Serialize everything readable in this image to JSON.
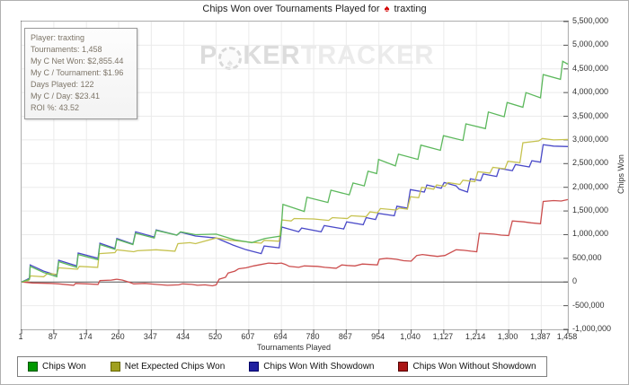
{
  "title": {
    "text": "Chips Won over Tournaments Played for",
    "suit_icon": "♠",
    "suit_color": "#d40000",
    "player": "traxting"
  },
  "watermark": {
    "p": "P",
    "chip_glyph": "♠",
    "ker": "KER",
    "tracker": "TRACKER"
  },
  "info_box": {
    "lines": [
      "Player: traxting",
      "Tournaments: 1,458",
      "My C Net Won: $2,855.44",
      "My C / Tournament: $1.96",
      "Days Played: 122",
      "My C / Day: $23.41",
      "ROI %: 43.52"
    ]
  },
  "colors": {
    "grid": "#ebebeb",
    "axis": "#555555",
    "zero_line": "#555555"
  },
  "chart_data": {
    "type": "line",
    "title": "Chips Won over Tournaments Played for traxting",
    "xlabel": "Tournaments Played",
    "ylabel": "Chips Won",
    "xlim": [
      1,
      1458
    ],
    "ylim": [
      -1000000,
      5500000
    ],
    "grid": true,
    "legend_position": "bottom-left",
    "x_ticks": [
      {
        "v": 1,
        "label": "1"
      },
      {
        "v": 87,
        "label": "87"
      },
      {
        "v": 174,
        "label": "174"
      },
      {
        "v": 260,
        "label": "260"
      },
      {
        "v": 347,
        "label": "347"
      },
      {
        "v": 434,
        "label": "434"
      },
      {
        "v": 520,
        "label": "520"
      },
      {
        "v": 607,
        "label": "607"
      },
      {
        "v": 694,
        "label": "694"
      },
      {
        "v": 780,
        "label": "780"
      },
      {
        "v": 867,
        "label": "867"
      },
      {
        "v": 954,
        "label": "954"
      },
      {
        "v": 1040,
        "label": "1,040"
      },
      {
        "v": 1127,
        "label": "1,127"
      },
      {
        "v": 1214,
        "label": "1,214"
      },
      {
        "v": 1300,
        "label": "1,300"
      },
      {
        "v": 1387,
        "label": "1,387"
      },
      {
        "v": 1458,
        "label": "1,458"
      }
    ],
    "y_ticks": [
      {
        "v": -1000000,
        "label": "-1,000,000"
      },
      {
        "v": -500000,
        "label": "-500,000"
      },
      {
        "v": 0,
        "label": "0"
      },
      {
        "v": 500000,
        "label": "500,000"
      },
      {
        "v": 1000000,
        "label": "1,000,000"
      },
      {
        "v": 1500000,
        "label": "1,500,000"
      },
      {
        "v": 2000000,
        "label": "2,000,000"
      },
      {
        "v": 2500000,
        "label": "2,500,000"
      },
      {
        "v": 3000000,
        "label": "3,000,000"
      },
      {
        "v": 3500000,
        "label": "3,500,000"
      },
      {
        "v": 4000000,
        "label": "4,000,000"
      },
      {
        "v": 4500000,
        "label": "4,500,000"
      },
      {
        "v": 5000000,
        "label": "5,000,000"
      },
      {
        "v": 5500000,
        "label": "5,500,000"
      }
    ],
    "series": [
      {
        "name": "Chips Won",
        "color": "#5cb85c",
        "legend_color": "#009900",
        "legend_border": "#005500",
        "points": [
          [
            1,
            0
          ],
          [
            15,
            40000
          ],
          [
            22,
            60000
          ],
          [
            24,
            330000
          ],
          [
            60,
            200000
          ],
          [
            95,
            110000
          ],
          [
            100,
            430000
          ],
          [
            148,
            310000
          ],
          [
            152,
            580000
          ],
          [
            205,
            470000
          ],
          [
            210,
            790000
          ],
          [
            250,
            690000
          ],
          [
            255,
            900000
          ],
          [
            298,
            790000
          ],
          [
            305,
            1030000
          ],
          [
            355,
            930000
          ],
          [
            360,
            1090000
          ],
          [
            415,
            990000
          ],
          [
            425,
            1060000
          ],
          [
            465,
            1000000
          ],
          [
            520,
            1010000
          ],
          [
            570,
            890000
          ],
          [
            615,
            830000
          ],
          [
            650,
            920000
          ],
          [
            692,
            970000
          ],
          [
            698,
            1640000
          ],
          [
            755,
            1490000
          ],
          [
            762,
            1790000
          ],
          [
            818,
            1680000
          ],
          [
            826,
            1940000
          ],
          [
            875,
            1840000
          ],
          [
            885,
            2090000
          ],
          [
            915,
            2030000
          ],
          [
            925,
            2340000
          ],
          [
            948,
            2290000
          ],
          [
            953,
            2590000
          ],
          [
            998,
            2450000
          ],
          [
            1006,
            2700000
          ],
          [
            1058,
            2590000
          ],
          [
            1066,
            2890000
          ],
          [
            1118,
            2780000
          ],
          [
            1126,
            3090000
          ],
          [
            1178,
            2990000
          ],
          [
            1186,
            3340000
          ],
          [
            1238,
            3240000
          ],
          [
            1246,
            3590000
          ],
          [
            1288,
            3490000
          ],
          [
            1296,
            3790000
          ],
          [
            1338,
            3690000
          ],
          [
            1346,
            4000000
          ],
          [
            1385,
            3890000
          ],
          [
            1392,
            4380000
          ],
          [
            1438,
            4280000
          ],
          [
            1444,
            4660000
          ],
          [
            1458,
            4600000
          ]
        ]
      },
      {
        "name": "Net Expected Chips Won",
        "color": "#c6c24f",
        "legend_color": "#a0a020",
        "legend_border": "#666600",
        "points": [
          [
            1,
            0
          ],
          [
            20,
            30000
          ],
          [
            25,
            130000
          ],
          [
            60,
            110000
          ],
          [
            70,
            180000
          ],
          [
            95,
            160000
          ],
          [
            100,
            300000
          ],
          [
            150,
            270000
          ],
          [
            155,
            330000
          ],
          [
            204,
            310000
          ],
          [
            208,
            600000
          ],
          [
            250,
            620000
          ],
          [
            255,
            680000
          ],
          [
            300,
            640000
          ],
          [
            310,
            660000
          ],
          [
            360,
            680000
          ],
          [
            410,
            650000
          ],
          [
            418,
            810000
          ],
          [
            450,
            830000
          ],
          [
            465,
            810000
          ],
          [
            520,
            930000
          ],
          [
            560,
            880000
          ],
          [
            600,
            850000
          ],
          [
            640,
            820000
          ],
          [
            648,
            880000
          ],
          [
            688,
            860000
          ],
          [
            695,
            1310000
          ],
          [
            720,
            1290000
          ],
          [
            728,
            1340000
          ],
          [
            780,
            1330000
          ],
          [
            820,
            1300000
          ],
          [
            830,
            1360000
          ],
          [
            870,
            1340000
          ],
          [
            880,
            1400000
          ],
          [
            920,
            1380000
          ],
          [
            930,
            1480000
          ],
          [
            950,
            1460000
          ],
          [
            958,
            1550000
          ],
          [
            1000,
            1520000
          ],
          [
            1008,
            1560000
          ],
          [
            1030,
            1540000
          ],
          [
            1038,
            1800000
          ],
          [
            1060,
            1780000
          ],
          [
            1068,
            2000000
          ],
          [
            1100,
            1960000
          ],
          [
            1108,
            2050000
          ],
          [
            1130,
            2020000
          ],
          [
            1138,
            2100000
          ],
          [
            1170,
            2060000
          ],
          [
            1178,
            2150000
          ],
          [
            1210,
            2120000
          ],
          [
            1218,
            2330000
          ],
          [
            1250,
            2300000
          ],
          [
            1258,
            2420000
          ],
          [
            1290,
            2390000
          ],
          [
            1298,
            2550000
          ],
          [
            1330,
            2520000
          ],
          [
            1338,
            2940000
          ],
          [
            1380,
            2980000
          ],
          [
            1390,
            3030000
          ],
          [
            1420,
            3000000
          ],
          [
            1458,
            3010000
          ]
        ]
      },
      {
        "name": "Chips Won With Showdown",
        "color": "#4a4ac8",
        "legend_color": "#2020a0",
        "legend_border": "#000066",
        "points": [
          [
            1,
            0
          ],
          [
            15,
            50000
          ],
          [
            22,
            80000
          ],
          [
            24,
            360000
          ],
          [
            60,
            230000
          ],
          [
            95,
            140000
          ],
          [
            100,
            460000
          ],
          [
            148,
            340000
          ],
          [
            152,
            610000
          ],
          [
            205,
            500000
          ],
          [
            210,
            820000
          ],
          [
            250,
            710000
          ],
          [
            255,
            920000
          ],
          [
            298,
            800000
          ],
          [
            305,
            1060000
          ],
          [
            355,
            950000
          ],
          [
            360,
            1100000
          ],
          [
            415,
            990000
          ],
          [
            425,
            1050000
          ],
          [
            465,
            970000
          ],
          [
            520,
            930000
          ],
          [
            565,
            780000
          ],
          [
            600,
            680000
          ],
          [
            640,
            600000
          ],
          [
            648,
            760000
          ],
          [
            688,
            720000
          ],
          [
            695,
            1160000
          ],
          [
            740,
            1060000
          ],
          [
            748,
            1140000
          ],
          [
            800,
            1060000
          ],
          [
            808,
            1190000
          ],
          [
            860,
            1120000
          ],
          [
            868,
            1270000
          ],
          [
            912,
            1210000
          ],
          [
            920,
            1360000
          ],
          [
            945,
            1320000
          ],
          [
            952,
            1450000
          ],
          [
            995,
            1400000
          ],
          [
            1002,
            1600000
          ],
          [
            1030,
            1560000
          ],
          [
            1038,
            1950000
          ],
          [
            1075,
            1900000
          ],
          [
            1082,
            2050000
          ],
          [
            1120,
            1980000
          ],
          [
            1128,
            2100000
          ],
          [
            1160,
            2030000
          ],
          [
            1168,
            1960000
          ],
          [
            1190,
            1900000
          ],
          [
            1198,
            2180000
          ],
          [
            1225,
            2140000
          ],
          [
            1232,
            2280000
          ],
          [
            1268,
            2230000
          ],
          [
            1275,
            2400000
          ],
          [
            1310,
            2350000
          ],
          [
            1318,
            2480000
          ],
          [
            1355,
            2430000
          ],
          [
            1362,
            2560000
          ],
          [
            1385,
            2530000
          ],
          [
            1392,
            2900000
          ],
          [
            1420,
            2870000
          ],
          [
            1458,
            2860000
          ]
        ]
      },
      {
        "name": "Chips Won Without Showdown",
        "color": "#cc4e4e",
        "legend_color": "#aa1515",
        "legend_border": "#550000",
        "points": [
          [
            1,
            0
          ],
          [
            30,
            -20000
          ],
          [
            80,
            -30000
          ],
          [
            100,
            -40000
          ],
          [
            140,
            -70000
          ],
          [
            145,
            -30000
          ],
          [
            175,
            -40000
          ],
          [
            205,
            -50000
          ],
          [
            210,
            30000
          ],
          [
            240,
            40000
          ],
          [
            255,
            60000
          ],
          [
            270,
            40000
          ],
          [
            290,
            -10000
          ],
          [
            300,
            -40000
          ],
          [
            330,
            -30000
          ],
          [
            360,
            -50000
          ],
          [
            390,
            -70000
          ],
          [
            420,
            -60000
          ],
          [
            430,
            -40000
          ],
          [
            455,
            -50000
          ],
          [
            470,
            -70000
          ],
          [
            490,
            -60000
          ],
          [
            510,
            -80000
          ],
          [
            520,
            -60000
          ],
          [
            528,
            60000
          ],
          [
            545,
            100000
          ],
          [
            552,
            190000
          ],
          [
            570,
            230000
          ],
          [
            580,
            280000
          ],
          [
            600,
            300000
          ],
          [
            620,
            340000
          ],
          [
            640,
            370000
          ],
          [
            660,
            400000
          ],
          [
            680,
            390000
          ],
          [
            694,
            400000
          ],
          [
            705,
            370000
          ],
          [
            715,
            330000
          ],
          [
            740,
            310000
          ],
          [
            755,
            340000
          ],
          [
            790,
            330000
          ],
          [
            810,
            310000
          ],
          [
            840,
            290000
          ],
          [
            855,
            360000
          ],
          [
            870,
            350000
          ],
          [
            890,
            340000
          ],
          [
            910,
            380000
          ],
          [
            930,
            370000
          ],
          [
            950,
            360000
          ],
          [
            955,
            480000
          ],
          [
            975,
            500000
          ],
          [
            1000,
            480000
          ],
          [
            1020,
            450000
          ],
          [
            1040,
            440000
          ],
          [
            1055,
            560000
          ],
          [
            1070,
            580000
          ],
          [
            1090,
            560000
          ],
          [
            1110,
            540000
          ],
          [
            1130,
            560000
          ],
          [
            1160,
            680000
          ],
          [
            1180,
            670000
          ],
          [
            1200,
            650000
          ],
          [
            1215,
            640000
          ],
          [
            1222,
            1030000
          ],
          [
            1260,
            1010000
          ],
          [
            1280,
            990000
          ],
          [
            1300,
            980000
          ],
          [
            1310,
            1290000
          ],
          [
            1340,
            1270000
          ],
          [
            1360,
            1250000
          ],
          [
            1385,
            1230000
          ],
          [
            1392,
            1700000
          ],
          [
            1420,
            1720000
          ],
          [
            1440,
            1710000
          ],
          [
            1458,
            1740000
          ]
        ]
      }
    ]
  }
}
